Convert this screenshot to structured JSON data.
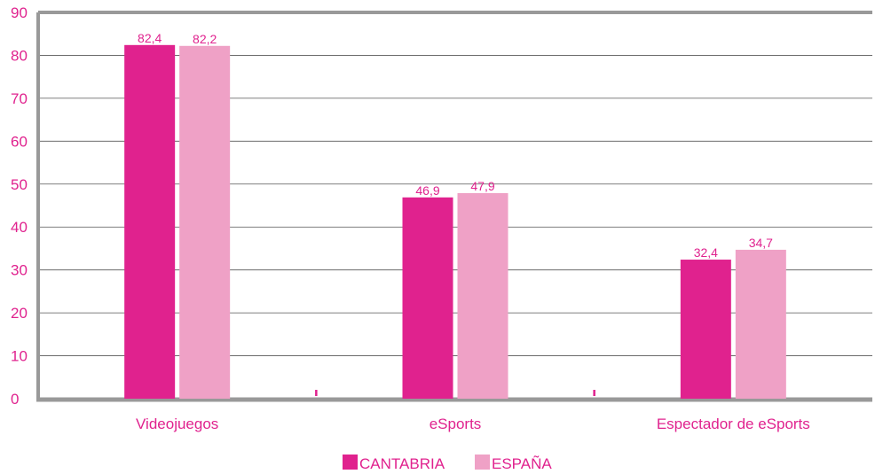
{
  "chart_data": {
    "type": "bar",
    "title": "",
    "xlabel": "",
    "ylabel": "",
    "ylim": [
      0,
      90
    ],
    "yticks": [
      "0",
      "10",
      "20",
      "30",
      "40",
      "50",
      "60",
      "70",
      "80",
      "90"
    ],
    "categories": [
      "Videojuegos",
      "eSports",
      "Espectador de eSports"
    ],
    "series": [
      {
        "name": "CANTABRIA",
        "values": [
          82.4,
          46.9,
          32.4
        ],
        "labels": [
          "82,4",
          "46,9",
          "32,4"
        ],
        "color": "#e0228e"
      },
      {
        "name": "ESPAÑA",
        "values": [
          82.2,
          47.9,
          34.7
        ],
        "labels": [
          "82,2",
          "47,9",
          "34,7"
        ],
        "color": "#efa1c6"
      }
    ],
    "grid": true,
    "legend_position": "bottom",
    "colors": {
      "axis_text": "#e0228e",
      "frame": "#999999",
      "gridline": "#555555"
    }
  }
}
